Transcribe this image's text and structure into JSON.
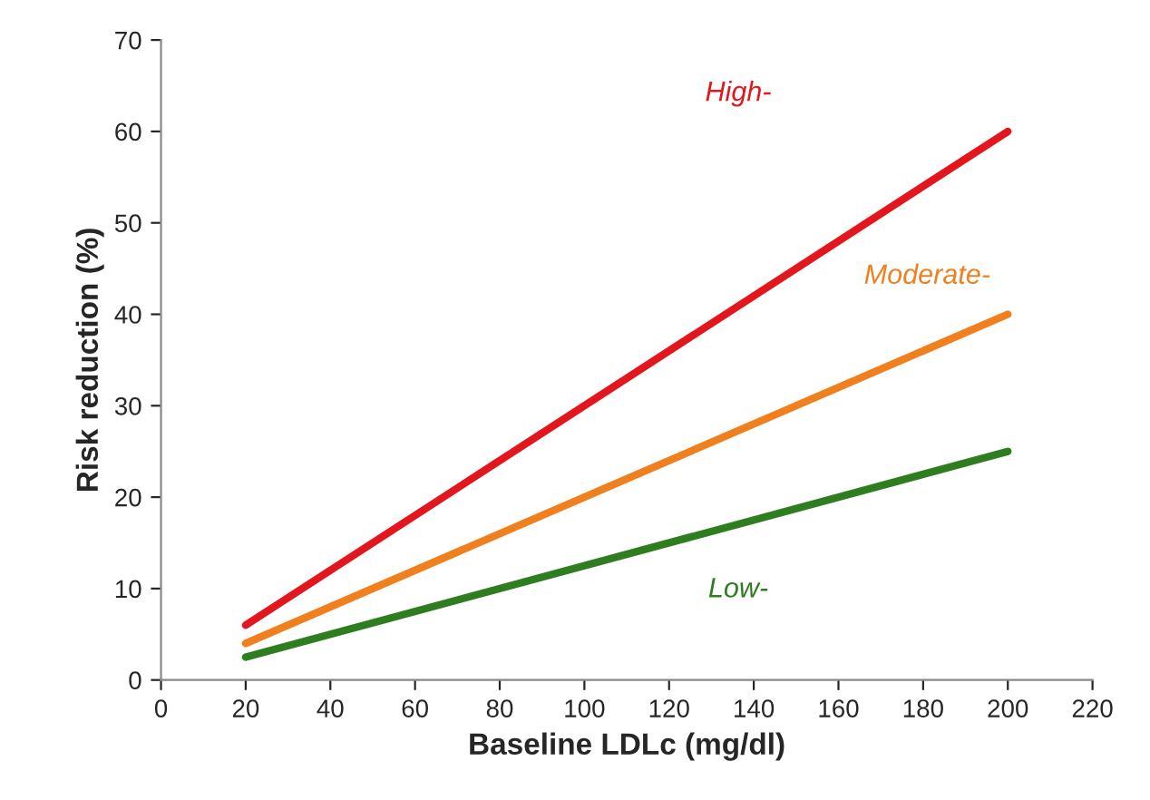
{
  "chart_data": {
    "type": "line",
    "xlabel": "Baseline LDLc (mg/dl)",
    "ylabel": "Risk reduction (%)",
    "x": [
      20,
      200
    ],
    "series": [
      {
        "name": "High-",
        "color": "#e3161d",
        "values": [
          6,
          60
        ]
      },
      {
        "name": "Moderate-",
        "color": "#f07f1e",
        "values": [
          4,
          40
        ]
      },
      {
        "name": "Low-",
        "color": "#2e7d1e",
        "values": [
          2.5,
          25
        ]
      }
    ],
    "xlim": [
      0,
      220
    ],
    "xticks": [
      0,
      20,
      40,
      60,
      80,
      100,
      120,
      140,
      160,
      180,
      200,
      220
    ],
    "ylim": [
      0,
      70
    ],
    "yticks": [
      0,
      10,
      20,
      30,
      40,
      50,
      60,
      70
    ],
    "grid": false,
    "legend": false,
    "marker": "none",
    "line_style": "solid"
  }
}
